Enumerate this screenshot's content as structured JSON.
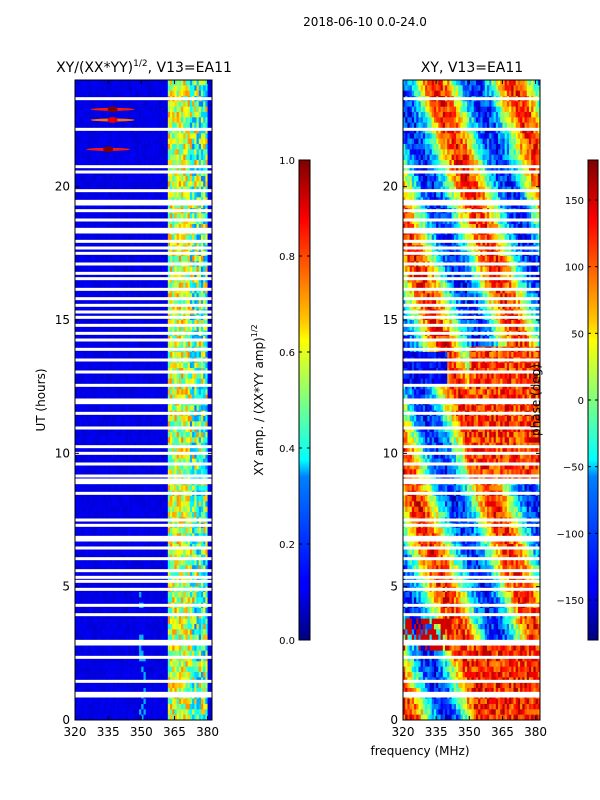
{
  "figure": {
    "suptitle": "2018-06-10 0.0-24.0",
    "shared_xlabel": "frequency (MHz)"
  },
  "chart_data": [
    {
      "type": "heatmap",
      "id": "amp",
      "title_main": "XY/(XX*YY)",
      "title_exp": "1/2",
      "title_tail": ", V13=EA11",
      "ylabel": "UT (hours)",
      "xlim": [
        320,
        382
      ],
      "ylim": [
        0,
        24
      ],
      "xticks": [
        320,
        335,
        350,
        365,
        380
      ],
      "yticks": [
        0,
        5,
        10,
        15,
        20
      ],
      "colorbar": {
        "label_main": "XY amp. / (XX*YY amp)",
        "label_exp": "1/2",
        "range": [
          0.0,
          1.0
        ],
        "ticks": [
          "0.0",
          "0.2",
          "0.4",
          "0.6",
          "0.8",
          "1.0"
        ],
        "tick_values": [
          0.0,
          0.2,
          0.4,
          0.6,
          0.8,
          1.0
        ],
        "colormap": "jet"
      },
      "hot_band_mhz": [
        362,
        380
      ],
      "hot_band_level": 0.55,
      "background_level": 0.08,
      "bright_points": [
        {
          "freq": 337,
          "ut": 22.9,
          "value": 1.0
        },
        {
          "freq": 337,
          "ut": 22.5,
          "value": 0.9
        },
        {
          "freq": 335,
          "ut": 21.4,
          "value": 1.0
        }
      ]
    },
    {
      "type": "heatmap",
      "id": "phase",
      "title_main": "XY, V13=EA11",
      "ylabel": "",
      "xlim": [
        320,
        382
      ],
      "ylim": [
        0,
        24
      ],
      "xticks": [
        320,
        335,
        350,
        365,
        380
      ],
      "yticks": [
        0,
        5,
        10,
        15,
        20
      ],
      "colorbar": {
        "label_main": "phase (deg)",
        "range": [
          -180,
          180
        ],
        "ticks": [
          "−150",
          "−100",
          "−50",
          "0",
          "50",
          "100",
          "150"
        ],
        "tick_values": [
          -150,
          -100,
          -50,
          0,
          50,
          100,
          150
        ],
        "colormap": "jet"
      }
    }
  ],
  "flagged_ut_hours": [
    0.9,
    1.0,
    1.45,
    2.35,
    2.85,
    2.95,
    3.95,
    4.3,
    4.9,
    5.2,
    5.35,
    5.6,
    6.05,
    6.45,
    6.75,
    6.85,
    7.3,
    7.5,
    8.5,
    8.9,
    9.0,
    9.15,
    9.6,
    10.0,
    10.25,
    10.95,
    11.5,
    11.9,
    12.0,
    12.55,
    13.05,
    13.5,
    13.9,
    14.25,
    14.5,
    14.8,
    15.1,
    15.3,
    15.55,
    15.8,
    16.15,
    16.55,
    16.75,
    17.1,
    17.5,
    17.7,
    17.95,
    18.3,
    18.4,
    18.75,
    19.1,
    19.35,
    19.45,
    19.85,
    20.55,
    20.75,
    22.15,
    23.3
  ]
}
